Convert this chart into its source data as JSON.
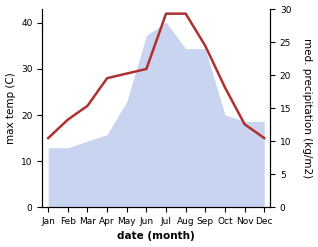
{
  "months": [
    "Jan",
    "Feb",
    "Mar",
    "Apr",
    "May",
    "Jun",
    "Jul",
    "Aug",
    "Sep",
    "Oct",
    "Nov",
    "Dec"
  ],
  "temperature": [
    15,
    19,
    22,
    28,
    29,
    30,
    42,
    42,
    35,
    26,
    18,
    15
  ],
  "precipitation": [
    9,
    9,
    10,
    11,
    16,
    26,
    28,
    24,
    24,
    14,
    13,
    13
  ],
  "temp_color": "#b03030",
  "precip_fill_color": "#c8d4f0",
  "precip_edge_color": "#c8d4f0",
  "temp_ylim": [
    0,
    43
  ],
  "precip_ylim": [
    0,
    30
  ],
  "temp_yticks": [
    0,
    10,
    20,
    30,
    40
  ],
  "precip_yticks": [
    0,
    5,
    10,
    15,
    20,
    25,
    30
  ],
  "ylabel_left": "max temp (C)",
  "ylabel_right": "med. precipitation (kg/m2)",
  "xlabel": "date (month)",
  "label_fontsize": 7.5,
  "tick_fontsize": 6.5
}
